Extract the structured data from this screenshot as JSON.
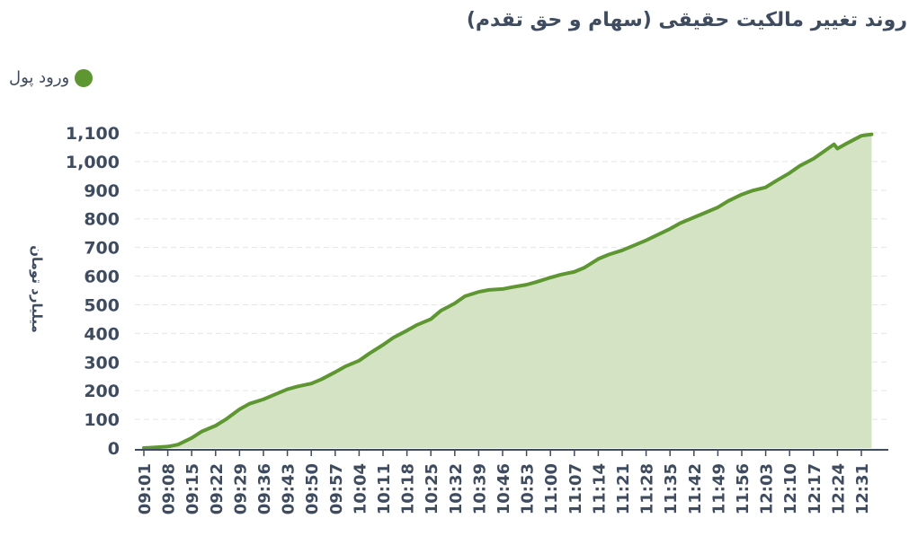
{
  "header": {
    "title": "روند تغییر مالکیت حقیقی (سهام و حق تقدم)"
  },
  "legend": {
    "label": "ورود پول",
    "color": "#5e9632"
  },
  "colors": {
    "line": "#5e9632",
    "area": "#d3e3c3",
    "grid": "#e5e5e5",
    "text": "#3f4b5f"
  },
  "chart_data": {
    "type": "area",
    "title": "روند تغییر مالکیت حقیقی (سهام و حق تقدم)",
    "ylabel": "میلیارد تومان",
    "xlabel": "",
    "ylim": [
      0,
      1100
    ],
    "yticks": [
      0,
      100,
      200,
      300,
      400,
      500,
      600,
      700,
      800,
      900,
      1000,
      1100
    ],
    "ytick_labels": [
      "0",
      "100",
      "200",
      "300",
      "400",
      "500",
      "600",
      "700",
      "800",
      "900",
      "1,000",
      "1,100"
    ],
    "xtick_labels": [
      "09:01",
      "09:08",
      "09:15",
      "09:22",
      "09:29",
      "09:36",
      "09:43",
      "09:50",
      "09:57",
      "10:04",
      "10:11",
      "10:18",
      "10:25",
      "10:32",
      "10:39",
      "10:46",
      "10:53",
      "11:00",
      "11:07",
      "11:14",
      "11:21",
      "11:28",
      "11:35",
      "11:42",
      "11:49",
      "11:56",
      "12:03",
      "12:10",
      "12:17",
      "12:24",
      "12:31"
    ],
    "grid": true,
    "legend_position": "top-left",
    "series": [
      {
        "name": "ورود پول",
        "x": [
          "09:01",
          "09:04",
          "09:08",
          "09:11",
          "09:15",
          "09:18",
          "09:22",
          "09:25",
          "09:29",
          "09:32",
          "09:36",
          "09:39",
          "09:43",
          "09:46",
          "09:50",
          "09:53",
          "09:57",
          "10:00",
          "10:04",
          "10:07",
          "10:11",
          "10:14",
          "10:18",
          "10:21",
          "10:25",
          "10:28",
          "10:32",
          "10:35",
          "10:39",
          "10:42",
          "10:46",
          "10:49",
          "10:53",
          "10:56",
          "11:00",
          "11:03",
          "11:07",
          "11:10",
          "11:14",
          "11:17",
          "11:21",
          "11:24",
          "11:28",
          "11:31",
          "11:35",
          "11:38",
          "11:42",
          "11:45",
          "11:49",
          "11:52",
          "11:56",
          "11:59",
          "12:03",
          "12:06",
          "12:10",
          "12:13",
          "12:17",
          "12:20",
          "12:23",
          "12:24",
          "12:27",
          "12:31",
          "12:34"
        ],
        "values": [
          0,
          2,
          5,
          12,
          35,
          58,
          78,
          100,
          135,
          155,
          170,
          185,
          205,
          215,
          225,
          240,
          265,
          285,
          305,
          330,
          360,
          385,
          410,
          430,
          450,
          480,
          505,
          530,
          545,
          552,
          555,
          562,
          570,
          580,
          595,
          605,
          615,
          630,
          660,
          675,
          690,
          705,
          725,
          742,
          765,
          785,
          805,
          820,
          840,
          862,
          885,
          898,
          910,
          932,
          960,
          985,
          1010,
          1035,
          1060,
          1045,
          1065,
          1090,
          1095
        ]
      }
    ]
  }
}
